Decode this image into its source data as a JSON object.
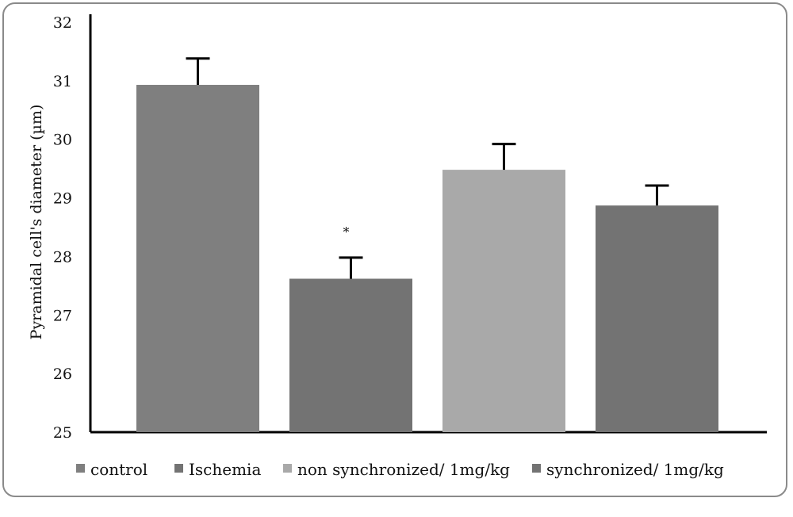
{
  "chart_data": {
    "type": "bar",
    "ylabel": "Pyramidal cell's diameter (µm)",
    "xlabel": "",
    "ylim": [
      25,
      32
    ],
    "yticks": [
      25,
      26,
      27,
      28,
      29,
      30,
      31,
      32
    ],
    "grid": false,
    "legend_position": "bottom",
    "series": [
      {
        "name": "control",
        "value": 30.93,
        "error": 0.45,
        "color": "#7f7f7f",
        "annotation": ""
      },
      {
        "name": "Ischemia",
        "value": 27.62,
        "error": 0.36,
        "color": "#737373",
        "annotation": "*"
      },
      {
        "name": "non synchronized/ 1mg/kg",
        "value": 29.48,
        "error": 0.44,
        "color": "#a9a9a9",
        "annotation": ""
      },
      {
        "name": "synchronized/ 1mg/kg",
        "value": 28.87,
        "error": 0.34,
        "color": "#737373",
        "annotation": ""
      }
    ]
  }
}
